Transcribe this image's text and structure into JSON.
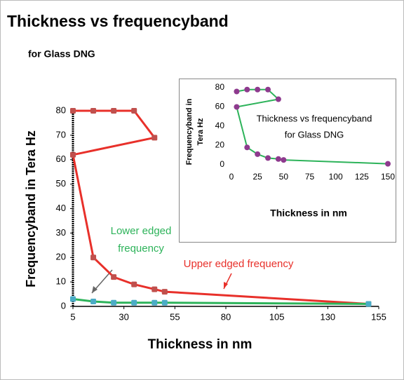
{
  "chart_data": [
    {
      "type": "line",
      "title": "Thickness vs frequencyband",
      "subtitle": "for Glass DNG",
      "xlabel": "Thickness in nm",
      "ylabel": "Frequencyband  in Tera Hz",
      "xlim": [
        5,
        155
      ],
      "xticks": [
        5,
        30,
        55,
        80,
        105,
        130,
        155
      ],
      "ylim": [
        0,
        82
      ],
      "yticks": [
        0,
        10,
        20,
        30,
        40,
        50,
        60,
        70,
        80
      ],
      "series": [
        {
          "color": "#e8302a",
          "marker_color": "#c0504d",
          "x": [
            5,
            15,
            25,
            35,
            45,
            5,
            15,
            25,
            35,
            45,
            50,
            150
          ],
          "values": [
            80,
            80,
            80,
            80,
            69,
            62,
            20,
            12,
            9,
            7,
            6,
            1
          ]
        },
        {
          "color": "#2db35a",
          "marker_color": "#4bacc6",
          "x": [
            5,
            15,
            25,
            35,
            45,
            50,
            150
          ],
          "values": [
            3,
            2,
            1.5,
            1.5,
            1.5,
            1.5,
            1
          ]
        }
      ],
      "annotations": [
        {
          "lines": [
            "Lower edged",
            "frequency"
          ],
          "color": "#2db35a"
        },
        {
          "lines": [
            "Upper edged frequency"
          ],
          "color": "#e8302a"
        }
      ]
    },
    {
      "type": "line",
      "title": "Thickness  vs frequencyband",
      "subtitle": "for Glass  DNG",
      "xlabel": "Thickness in nm",
      "ylabel": [
        "Frequencyband  in",
        "Tera Hz"
      ],
      "xlim": [
        0,
        150
      ],
      "xticks": [
        0,
        25,
        50,
        75,
        100,
        125,
        150
      ],
      "ylim": [
        0,
        80
      ],
      "yticks": [
        0,
        20,
        40,
        60,
        80
      ],
      "series": [
        {
          "color": "#2db35a",
          "marker_color": "#8e3a8e",
          "x": [
            5,
            15,
            25,
            35,
            45,
            5,
            15,
            25,
            35,
            45,
            50,
            150
          ],
          "values": [
            76,
            78,
            78,
            78,
            68,
            60,
            18,
            11,
            7,
            6,
            5,
            1
          ]
        }
      ]
    }
  ]
}
